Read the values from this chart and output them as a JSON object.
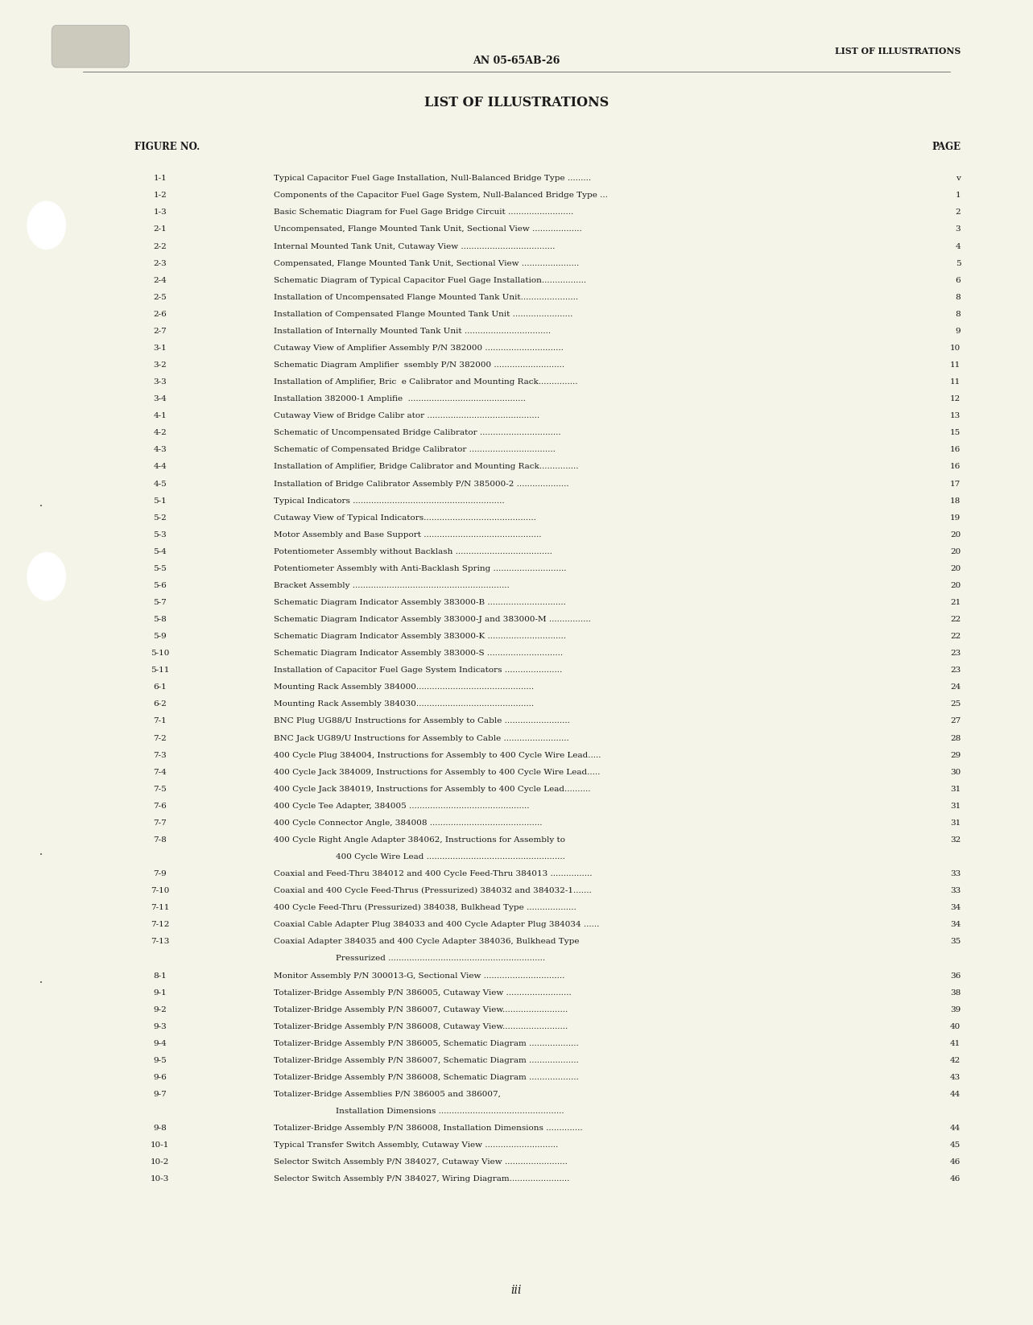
{
  "background_color": "#f5f4e8",
  "page_width": 12.83,
  "page_height": 16.46,
  "header_right": "LIST OF ILLUSTRATIONS",
  "header_center": "AN 05-65AB-26",
  "main_title": "LIST OF ILLUSTRATIONS",
  "col_left_header": "FIGURE NO.",
  "col_right_header": "PAGE",
  "footer_text": "iii",
  "entries": [
    [
      "1-1",
      "Typical Capacitor Fuel Gage Installation, Null-Balanced Bridge Type .........",
      "v"
    ],
    [
      "1-2",
      "Components of the Capacitor Fuel Gage System, Null-Balanced Bridge Type ...",
      "1"
    ],
    [
      "1-3",
      "Basic Schematic Diagram for Fuel Gage Bridge Circuit .........................",
      "2"
    ],
    [
      "2-1",
      "Uncompensated, Flange Mounted Tank Unit, Sectional View ...................",
      "3"
    ],
    [
      "2-2",
      "Internal Mounted Tank Unit, Cutaway View ....................................",
      "4"
    ],
    [
      "2-3",
      "Compensated, Flange Mounted Tank Unit, Sectional View ......................",
      "5"
    ],
    [
      "2-4",
      "Schematic Diagram of Typical Capacitor Fuel Gage Installation.................",
      "6"
    ],
    [
      "2-5",
      "Installation of Uncompensated Flange Mounted Tank Unit......................",
      "8"
    ],
    [
      "2-6",
      "Installation of Compensated Flange Mounted Tank Unit .......................",
      "8"
    ],
    [
      "2-7",
      "Installation of Internally Mounted Tank Unit .................................",
      "9"
    ],
    [
      "3-1",
      "Cutaway View of Amplifier Assembly P/N 382000 ..............................",
      "10"
    ],
    [
      "3-2",
      "Schematic Diagram Amplifier  ssembly P/N 382000 ...........................",
      "11"
    ],
    [
      "3-3",
      "Installation of Amplifier, Bric  e Calibrator and Mounting Rack...............",
      "11"
    ],
    [
      "3-4",
      "Installation 382000-1 Amplifie  .............................................",
      "12"
    ],
    [
      "4-1",
      "Cutaway View of Bridge Calibr ator ...........................................",
      "13"
    ],
    [
      "4-2",
      "Schematic of Uncompensated Bridge Calibrator ...............................",
      "15"
    ],
    [
      "4-3",
      "Schematic of Compensated Bridge Calibrator .................................",
      "16"
    ],
    [
      "4-4",
      "Installation of Amplifier, Bridge Calibrator and Mounting Rack...............",
      "16"
    ],
    [
      "4-5",
      "Installation of Bridge Calibrator Assembly P/N 385000-2 ....................",
      "17"
    ],
    [
      "5-1",
      "Typical Indicators ..........................................................",
      "18"
    ],
    [
      "5-2",
      "Cutaway View of Typical Indicators...........................................",
      "19"
    ],
    [
      "5-3",
      "Motor Assembly and Base Support .............................................",
      "20"
    ],
    [
      "5-4",
      "Potentiometer Assembly without Backlash .....................................",
      "20"
    ],
    [
      "5-5",
      "Potentiometer Assembly with Anti-Backlash Spring ............................",
      "20"
    ],
    [
      "5-6",
      "Bracket Assembly ............................................................",
      "20"
    ],
    [
      "5-7",
      "Schematic Diagram Indicator Assembly 383000-B ..............................",
      "21"
    ],
    [
      "5-8",
      "Schematic Diagram Indicator Assembly 383000-J and 383000-M ................",
      "22"
    ],
    [
      "5-9",
      "Schematic Diagram Indicator Assembly 383000-K ..............................",
      "22"
    ],
    [
      "5-10",
      "Schematic Diagram Indicator Assembly 383000-S .............................",
      "23"
    ],
    [
      "5-11",
      "Installation of Capacitor Fuel Gage System Indicators ......................",
      "23"
    ],
    [
      "6-1",
      "Mounting Rack Assembly 384000.............................................",
      "24"
    ],
    [
      "6-2",
      "Mounting Rack Assembly 384030.............................................",
      "25"
    ],
    [
      "7-1",
      "BNC Plug UG88/U Instructions for Assembly to Cable .........................",
      "27"
    ],
    [
      "7-2",
      "BNC Jack UG89/U Instructions for Assembly to Cable .........................",
      "28"
    ],
    [
      "7-3",
      "400 Cycle Plug 384004, Instructions for Assembly to 400 Cycle Wire Lead.....",
      "29"
    ],
    [
      "7-4",
      "400 Cycle Jack 384009, Instructions for Assembly to 400 Cycle Wire Lead.....",
      "30"
    ],
    [
      "7-5",
      "400 Cycle Jack 384019, Instructions for Assembly to 400 Cycle Lead..........",
      "31"
    ],
    [
      "7-6",
      "400 Cycle Tee Adapter, 384005 ..............................................",
      "31"
    ],
    [
      "7-7",
      "400 Cycle Connector Angle, 384008 ...........................................",
      "31"
    ],
    [
      "7-8",
      "400 Cycle Right Angle Adapter 384062, Instructions for Assembly to\n            400 Cycle Wire Lead .....................................................",
      "32"
    ],
    [
      "7-9",
      "Coaxial and Feed-Thru 384012 and 400 Cycle Feed-Thru 384013 ................",
      "33"
    ],
    [
      "7-10",
      "Coaxial and 400 Cycle Feed-Thrus (Pressurized) 384032 and 384032-1.......",
      "33"
    ],
    [
      "7-11",
      "400 Cycle Feed-Thru (Pressurized) 384038, Bulkhead Type ...................",
      "34"
    ],
    [
      "7-12",
      "Coaxial Cable Adapter Plug 384033 and 400 Cycle Adapter Plug 384034 ......",
      "34"
    ],
    [
      "7-13",
      "Coaxial Adapter 384035 and 400 Cycle Adapter 384036, Bulkhead Type\n            Pressurized ............................................................",
      "35"
    ],
    [
      "8-1",
      "Monitor Assembly P/N 300013-G, Sectional View ...............................",
      "36"
    ],
    [
      "9-1",
      "Totalizer-Bridge Assembly P/N 386005, Cutaway View .........................",
      "38"
    ],
    [
      "9-2",
      "Totalizer-Bridge Assembly P/N 386007, Cutaway View.........................",
      "39"
    ],
    [
      "9-3",
      "Totalizer-Bridge Assembly P/N 386008, Cutaway View.........................",
      "40"
    ],
    [
      "9-4",
      "Totalizer-Bridge Assembly P/N 386005, Schematic Diagram ...................",
      "41"
    ],
    [
      "9-5",
      "Totalizer-Bridge Assembly P/N 386007, Schematic Diagram ...................",
      "42"
    ],
    [
      "9-6",
      "Totalizer-Bridge Assembly P/N 386008, Schematic Diagram ...................",
      "43"
    ],
    [
      "9-7",
      "Totalizer-Bridge Assemblies P/N 386005 and 386007,\n            Installation Dimensions ................................................",
      "44"
    ],
    [
      "9-8",
      "Totalizer-Bridge Assembly P/N 386008, Installation Dimensions ..............",
      "44"
    ],
    [
      "10-1",
      "Typical Transfer Switch Assembly, Cutaway View ............................",
      "45"
    ],
    [
      "10-2",
      "Selector Switch Assembly P/N 384027, Cutaway View ........................",
      "46"
    ],
    [
      "10-3",
      "Selector Switch Assembly P/N 384027, Wiring Diagram.......................",
      "46"
    ]
  ]
}
